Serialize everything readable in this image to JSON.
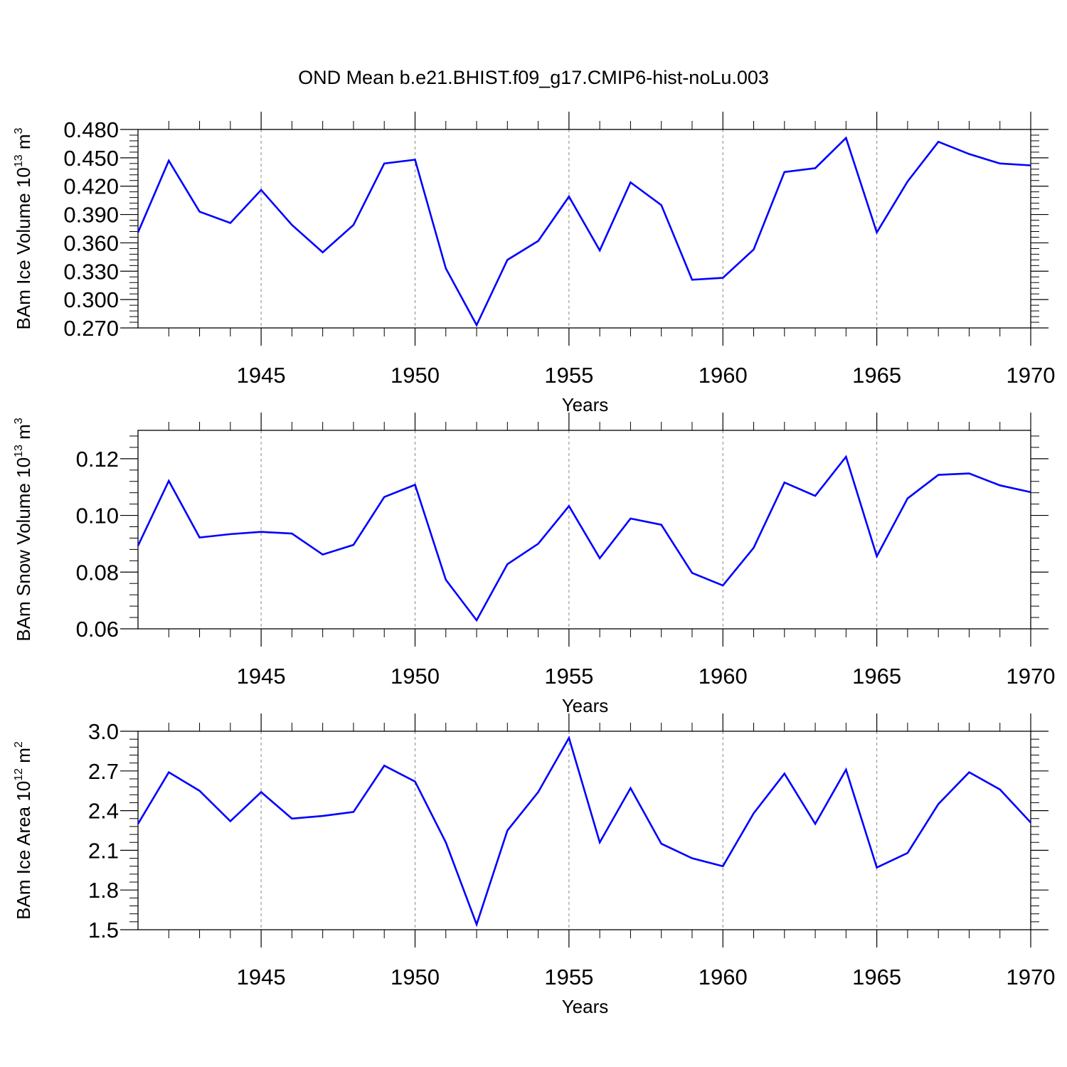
{
  "title": "OND Mean b.e21.BHIST.f09_g17.CMIP6-hist-noLu.003",
  "line_color": "#0000ff",
  "chart_data": [
    {
      "type": "line",
      "xlabel": "Years",
      "ylabel_main": "BAm Ice Volume 10",
      "ylabel_exp": "13",
      "ylabel_unit": " m",
      "ylabel_unit_exp": "3",
      "xlim": [
        1941,
        1970
      ],
      "ylim": [
        0.27,
        0.48
      ],
      "yticks": [
        0.27,
        0.3,
        0.33,
        0.36,
        0.39,
        0.42,
        0.45,
        0.48
      ],
      "ytick_labels": [
        "0.270",
        "0.300",
        "0.330",
        "0.360",
        "0.390",
        "0.420",
        "0.450",
        "0.480"
      ],
      "xticks": [
        1945,
        1950,
        1955,
        1960,
        1965,
        1970
      ],
      "xtick_labels": [
        "1945",
        "1950",
        "1955",
        "1960",
        "1965",
        "1970"
      ],
      "x": [
        1941,
        1942,
        1943,
        1944,
        1945,
        1946,
        1947,
        1948,
        1949,
        1950,
        1951,
        1952,
        1953,
        1954,
        1955,
        1956,
        1957,
        1958,
        1959,
        1960,
        1961,
        1962,
        1963,
        1964,
        1965,
        1966,
        1967,
        1968,
        1969,
        1970
      ],
      "values": [
        0.371,
        0.447,
        0.393,
        0.381,
        0.416,
        0.379,
        0.35,
        0.379,
        0.444,
        0.448,
        0.333,
        0.273,
        0.342,
        0.362,
        0.409,
        0.352,
        0.424,
        0.4,
        0.321,
        0.323,
        0.353,
        0.435,
        0.439,
        0.471,
        0.371,
        0.425,
        0.467,
        0.454,
        0.444,
        0.442
      ]
    },
    {
      "type": "line",
      "xlabel": "Years",
      "ylabel_main": "BAm Snow Volume 10",
      "ylabel_exp": "13",
      "ylabel_unit": " m",
      "ylabel_unit_exp": "3",
      "xlim": [
        1941,
        1970
      ],
      "ylim": [
        0.06,
        0.13
      ],
      "yticks": [
        0.06,
        0.08,
        0.1,
        0.12
      ],
      "ytick_labels": [
        "0.06",
        "0.08",
        "0.10",
        "0.12"
      ],
      "xticks": [
        1945,
        1950,
        1955,
        1960,
        1965,
        1970
      ],
      "xtick_labels": [
        "1945",
        "1950",
        "1955",
        "1960",
        "1965",
        "1970"
      ],
      "x": [
        1941,
        1942,
        1943,
        1944,
        1945,
        1946,
        1947,
        1948,
        1949,
        1950,
        1951,
        1952,
        1953,
        1954,
        1955,
        1956,
        1957,
        1958,
        1959,
        1960,
        1961,
        1962,
        1963,
        1964,
        1965,
        1966,
        1967,
        1968,
        1969,
        1970
      ],
      "values": [
        0.0893,
        0.1122,
        0.0922,
        0.0934,
        0.0942,
        0.0936,
        0.0862,
        0.0896,
        0.1065,
        0.1108,
        0.0773,
        0.063,
        0.0828,
        0.09,
        0.1033,
        0.0849,
        0.0989,
        0.0967,
        0.0797,
        0.0753,
        0.0886,
        0.1116,
        0.1069,
        0.1207,
        0.0856,
        0.106,
        0.1143,
        0.1148,
        0.1106,
        0.1082
      ]
    },
    {
      "type": "line",
      "xlabel": "Years",
      "ylabel_main": "BAm Ice Area 10",
      "ylabel_exp": "12",
      "ylabel_unit": " m",
      "ylabel_unit_exp": "2",
      "xlim": [
        1941,
        1970
      ],
      "ylim": [
        1.5,
        3.0
      ],
      "yticks": [
        1.5,
        1.8,
        2.1,
        2.4,
        2.7,
        3.0
      ],
      "ytick_labels": [
        "1.5",
        "1.8",
        "2.1",
        "2.4",
        "2.7",
        "3.0"
      ],
      "xticks": [
        1945,
        1950,
        1955,
        1960,
        1965,
        1970
      ],
      "xtick_labels": [
        "1945",
        "1950",
        "1955",
        "1960",
        "1965",
        "1970"
      ],
      "x": [
        1941,
        1942,
        1943,
        1944,
        1945,
        1946,
        1947,
        1948,
        1949,
        1950,
        1951,
        1952,
        1953,
        1954,
        1955,
        1956,
        1957,
        1958,
        1959,
        1960,
        1961,
        1962,
        1963,
        1964,
        1965,
        1966,
        1967,
        1968,
        1969,
        1970
      ],
      "values": [
        2.3,
        2.69,
        2.55,
        2.32,
        2.54,
        2.34,
        2.36,
        2.39,
        2.74,
        2.62,
        2.16,
        1.54,
        2.25,
        2.54,
        2.95,
        2.16,
        2.57,
        2.15,
        2.04,
        1.98,
        2.38,
        2.68,
        2.3,
        2.71,
        1.97,
        2.08,
        2.45,
        2.69,
        2.56,
        2.31
      ]
    }
  ]
}
